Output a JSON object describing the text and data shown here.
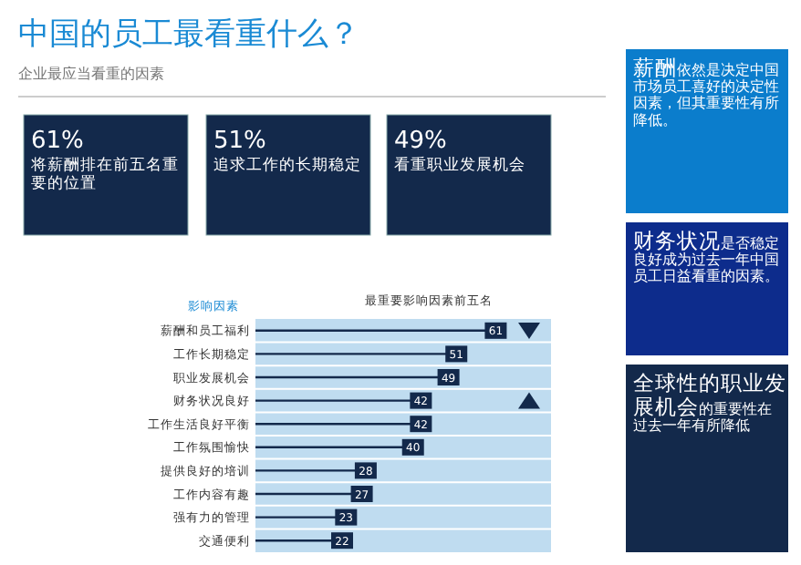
{
  "chart_data": [
    {
      "type": "other",
      "title": "中国的员工最看重什么？",
      "subtitle": "企业最应当看重的因素",
      "annotations": [
        "61%",
        "将薪酬排在前五名重要的位置",
        "51%",
        "追求工作的长期稳定",
        "49%",
        "看重职业发展机会",
        "薪酬",
        "依然是决定中国市场员工喜好的决定性因素，但其重要性有所降低。",
        "财务状况",
        "是否稳定良好成为过去一年中国员工日益看重的因素。",
        "全球性的职业发展机会",
        "的重要性在过去一年有所降低"
      ]
    },
    {
      "type": "lollipop",
      "orientation": "horizontal",
      "title": "最重要影响因素前五名",
      "ylabel": "影响因素",
      "data_labels": true,
      "color": "#13294b",
      "grid": true,
      "categories": [
        "薪酬和员工福利",
        "工作长期稳定",
        "职业发展机会",
        "财务状况良好",
        "工作生活良好平衡",
        "工作氛围愉快",
        "提供良好的培训",
        "工作内容有趣",
        "强有力的管理",
        "交通便利"
      ],
      "values": [
        61,
        51,
        49,
        42,
        42,
        40,
        28,
        27,
        23,
        22
      ]
    }
  ]
}
